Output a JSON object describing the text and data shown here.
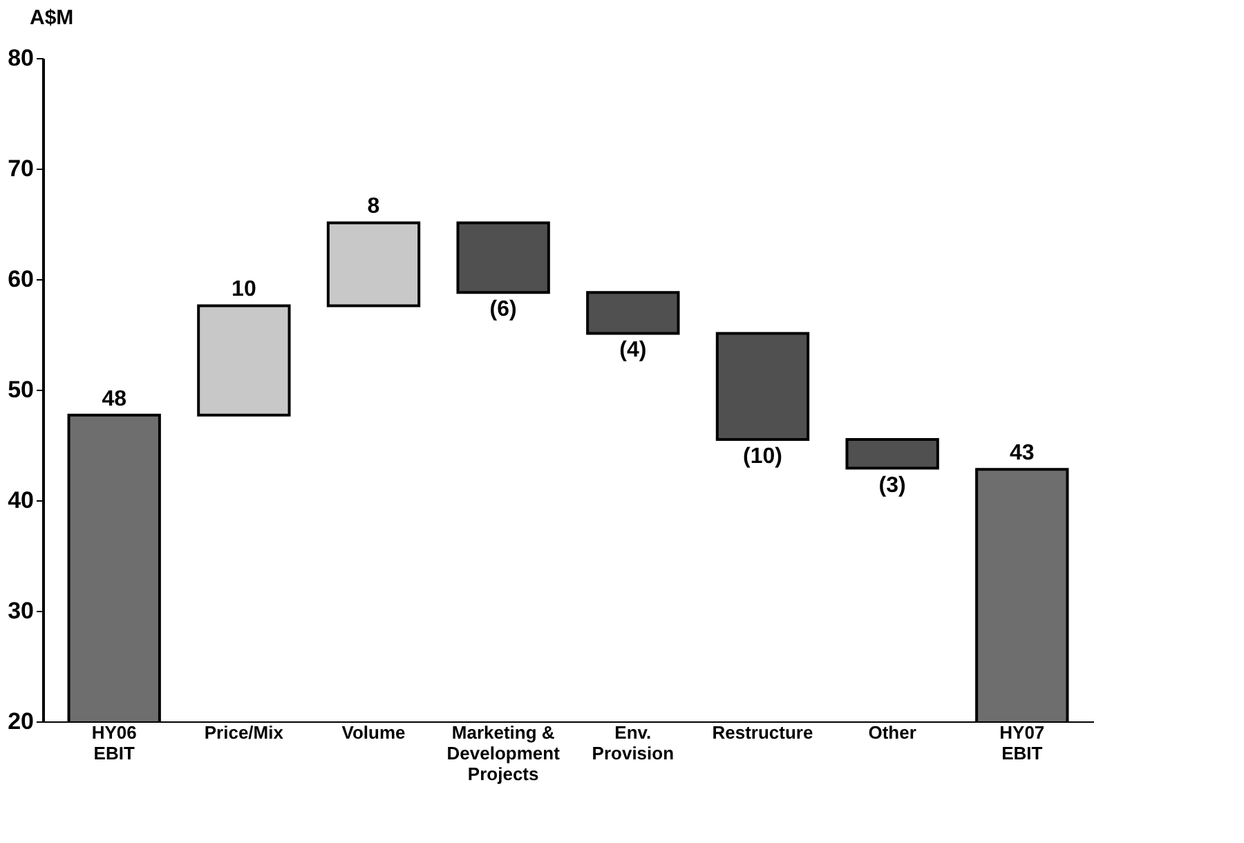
{
  "chart_data": {
    "type": "bar",
    "ylabel": "A$M",
    "categories": [
      "HY06\nEBIT",
      "Price/Mix",
      "Volume",
      "Marketing &\nDevelopment\nProjects",
      "Env.\nProvision",
      "Restructure",
      "Other",
      "HY07\nEBIT"
    ],
    "values": [
      47.7,
      9.9,
      7.5,
      -6.3,
      -3.7,
      -9.6,
      -2.6,
      42.8
    ],
    "base": [
      null,
      47.7,
      57.6,
      65.1,
      58.8,
      55.1,
      45.5,
      null
    ],
    "colors": [
      "#6e6e6e",
      "#c8c8c8",
      "#c8c8c8",
      "#505050",
      "#505050",
      "#505050",
      "#505050",
      "#6e6e6e"
    ],
    "value_labels": [
      "48",
      "10",
      "8",
      "(6)",
      "(4)",
      "(10)",
      "(3)",
      "43"
    ],
    "ylim": [
      20,
      80
    ],
    "yticks": [
      20,
      30,
      40,
      50,
      60,
      70,
      80
    ],
    "grid": false
  }
}
